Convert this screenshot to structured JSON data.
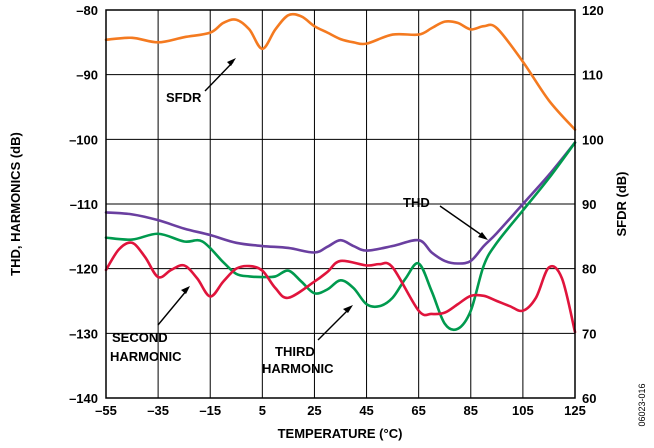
{
  "chart_data": {
    "type": "line",
    "xlabel": "TEMPERATURE (°C)",
    "ylabel": "THD, HARMONICS (dB)",
    "y2label": "SFDR (dB)",
    "xlim": [
      -55,
      125
    ],
    "ylim": [
      -140,
      -80
    ],
    "y2lim": [
      60,
      120
    ],
    "grid": true,
    "x_ticks": [
      -55,
      -35,
      -15,
      5,
      25,
      45,
      65,
      85,
      105,
      125
    ],
    "y_ticks": [
      -80,
      -90,
      -100,
      -110,
      -120,
      -130,
      -140
    ],
    "y2_ticks": [
      120,
      110,
      100,
      90,
      80,
      70,
      60
    ],
    "series": [
      {
        "name": "SFDR",
        "axis": "right",
        "color": "#f47a20",
        "x": [
          -55,
          -45,
          -35,
          -25,
          -15,
          -10,
          -5,
          0,
          5,
          10,
          15,
          20,
          25,
          30,
          35,
          40,
          45,
          55,
          65,
          70,
          75,
          80,
          85,
          90,
          95,
          105,
          115,
          125
        ],
        "y": [
          115.4,
          115.7,
          115,
          115.8,
          116.5,
          118,
          118.5,
          117,
          114,
          117,
          119.2,
          119,
          117.5,
          116.5,
          115.5,
          115,
          114.8,
          116.2,
          116.2,
          117.2,
          118.2,
          118,
          117,
          117.5,
          117.2,
          112,
          106,
          101.5
        ]
      },
      {
        "name": "THD",
        "axis": "left",
        "color": "#6a3fa0",
        "x": [
          -55,
          -45,
          -35,
          -25,
          -15,
          -5,
          5,
          15,
          25,
          30,
          35,
          40,
          45,
          55,
          65,
          70,
          75,
          80,
          85,
          90,
          95,
          105,
          115,
          125
        ],
        "y": [
          -111.3,
          -111.6,
          -112.5,
          -113.8,
          -114.8,
          -116,
          -116.5,
          -116.8,
          -117.5,
          -116.6,
          -115.6,
          -116.5,
          -117.2,
          -116.5,
          -115.6,
          -117.5,
          -118.8,
          -119.2,
          -118.8,
          -116.5,
          -114.5,
          -110,
          -105.5,
          -100.5
        ]
      },
      {
        "name": "THIRD HARMONIC",
        "axis": "left",
        "color": "#009a4e",
        "x": [
          -55,
          -45,
          -35,
          -25,
          -18,
          -10,
          -5,
          0,
          5,
          10,
          15,
          20,
          25,
          30,
          35,
          40,
          45,
          50,
          55,
          60,
          65,
          70,
          75,
          80,
          85,
          90,
          95,
          105,
          115,
          125
        ],
        "y": [
          -115.2,
          -115.5,
          -114.6,
          -115.8,
          -115.8,
          -119,
          -120.8,
          -121.2,
          -121.3,
          -121.2,
          -120.3,
          -122,
          -123.8,
          -123.2,
          -121.8,
          -123,
          -125.5,
          -125.8,
          -124.5,
          -121.5,
          -119.2,
          -123.5,
          -128.5,
          -129.3,
          -126.5,
          -119.5,
          -116,
          -111,
          -106,
          -100.5
        ]
      },
      {
        "name": "SECOND HARMONIC",
        "axis": "left",
        "color": "#e0143c",
        "x": [
          -55,
          -50,
          -45,
          -40,
          -35,
          -30,
          -25,
          -20,
          -15,
          -10,
          -5,
          0,
          5,
          10,
          15,
          25,
          30,
          35,
          45,
          50,
          55,
          65,
          70,
          75,
          80,
          85,
          90,
          95,
          100,
          105,
          110,
          115,
          120,
          125
        ],
        "y": [
          -120.2,
          -117,
          -116,
          -118.2,
          -121.3,
          -120.2,
          -119.5,
          -121.5,
          -124.3,
          -122,
          -120,
          -119.6,
          -120.3,
          -123,
          -124.5,
          -122,
          -120.5,
          -118.8,
          -119.5,
          -119.3,
          -119.8,
          -126.5,
          -127,
          -126.8,
          -125.5,
          -124.2,
          -124.2,
          -125,
          -125.8,
          -126.5,
          -124.5,
          -119.8,
          -121.5,
          -129.8
        ]
      }
    ],
    "annotations": [
      {
        "text": "SFDR"
      },
      {
        "text": "THD"
      },
      {
        "text": "SECOND",
        "text2": "HARMONIC"
      },
      {
        "text": "THIRD",
        "text2": "HARMONIC"
      }
    ]
  },
  "figure_id": "06023-016"
}
